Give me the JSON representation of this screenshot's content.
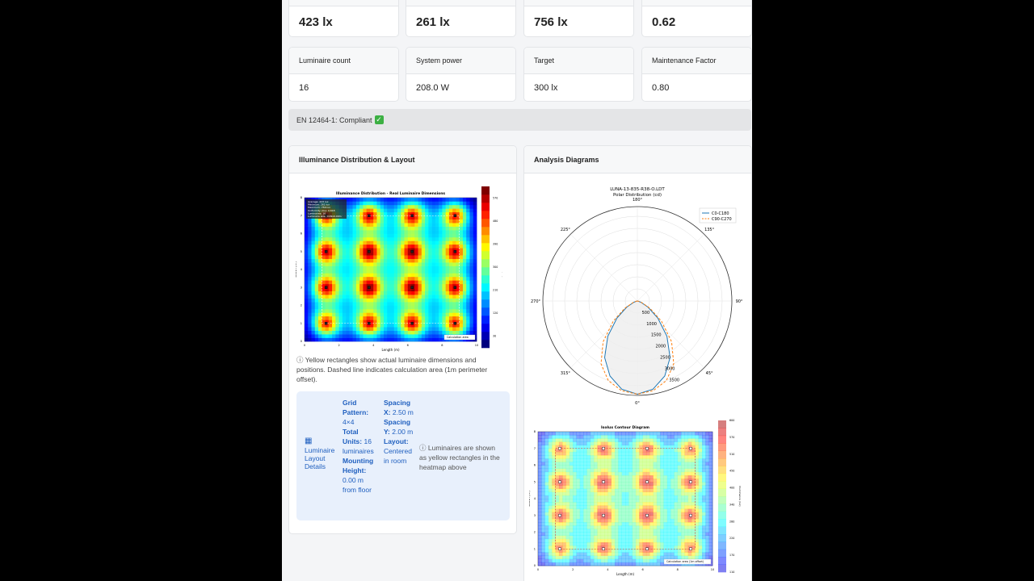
{
  "metrics_top": [
    {
      "value": "423 lx"
    },
    {
      "value": "261 lx"
    },
    {
      "value": "756 lx"
    },
    {
      "value": "0.62"
    }
  ],
  "metrics": [
    {
      "label": "Luminaire count",
      "value": "16"
    },
    {
      "label": "System power",
      "value": "208.0 W"
    },
    {
      "label": "Target",
      "value": "300 lx"
    },
    {
      "label": "Maintenance Factor",
      "value": "0.80"
    }
  ],
  "compliance": {
    "text": "EN 12464-1: Compliant",
    "icon": "check-mark-icon",
    "check": "✓"
  },
  "left_panel": {
    "title": "Illuminance Distribution & Layout",
    "caption": "ⓘ Yellow rectangles show actual luminaire dimensions and positions. Dashed line indicates calculation area (1m perimeter offset).",
    "layout": {
      "icon": "grid-icon",
      "glyph": "▦",
      "title": "Luminaire Layout Details",
      "grid_label": "Grid Pattern:",
      "grid_value": "4×4",
      "units_label": "Total Units:",
      "units_value": "16 luminaires",
      "height_label": "Mounting Height:",
      "height_value": "0.00 m from floor",
      "sx_label": "Spacing X:",
      "sx_value": "2.50 m",
      "sy_label": "Spacing Y:",
      "sy_value": "2.00 m",
      "layout_label": "Layout:",
      "layout_value": "Centered in room",
      "note": "ⓘ Luminaires are shown as yellow rectangles in the heatmap above"
    }
  },
  "right_panel": {
    "title": "Analysis Diagrams"
  },
  "chart_data": [
    {
      "type": "heatmap",
      "title": "Illuminance Distribution - Real Luminaire Dimensions",
      "xlabel": "Length (m)",
      "ylabel": "Width (m)",
      "colorbar_label": "Illuminance (lux)",
      "xlim": [
        0,
        10
      ],
      "ylim": [
        0,
        8
      ],
      "xticks": [
        0,
        2,
        4,
        6,
        8,
        10
      ],
      "yticks": [
        0,
        1,
        2,
        3,
        4,
        5,
        6,
        7,
        8
      ],
      "colorbar_ticks": [
        30,
        120,
        210,
        300,
        390,
        480,
        570
      ],
      "range": [
        30,
        756
      ],
      "colormap": "jet",
      "luminaires_x": [
        1.25,
        3.75,
        6.25,
        8.75
      ],
      "luminaires_y": [
        1,
        3,
        5,
        7
      ],
      "info_box": [
        "Average: 423 lux",
        "Minimum: 261 lux",
        "Maximum: 756 lux",
        "Uniformity (Uo): 0.618",
        "Luminaires: 16",
        "Luminaire size: 0.09x0.09m"
      ],
      "legend": "Calculation area",
      "legend_position": "lower-right"
    },
    {
      "type": "polar",
      "title": "LUNA-13-835-R38-O.LDT",
      "subtitle": "Polar Distribution (cd)",
      "angle_labels": [
        "0°",
        "45°",
        "90°",
        "135°",
        "180°",
        "225°",
        "270°",
        "315°"
      ],
      "radial_ticks": [
        500,
        1000,
        1500,
        2000,
        2500,
        3000,
        3500
      ],
      "rmax": 3900,
      "angles": [
        0,
        10,
        20,
        30,
        40,
        50,
        60,
        70,
        80,
        90
      ],
      "series": [
        {
          "name": "C0-C180",
          "color": "#1f77b4",
          "values": [
            3850,
            3700,
            3300,
            2700,
            1900,
            1100,
            500,
            150,
            30,
            0
          ]
        },
        {
          "name": "C90-C270",
          "color": "#ff7f0e",
          "values": [
            3850,
            3760,
            3500,
            3000,
            2200,
            1300,
            600,
            200,
            50,
            0
          ]
        }
      ],
      "legend_position": "top-right"
    },
    {
      "type": "heatmap",
      "title": "Isolux Contour Diagram",
      "xlabel": "Length (m)",
      "ylabel": "Width (m)",
      "colorbar_label": "Illuminance (lux)",
      "xlim": [
        0,
        10
      ],
      "ylim": [
        0,
        8
      ],
      "xticks": [
        0,
        2,
        4,
        6,
        8,
        10
      ],
      "yticks": [
        0,
        1,
        2,
        3,
        4,
        5,
        6,
        7,
        8
      ],
      "colorbar_ticks": [
        110,
        170,
        220,
        280,
        340,
        400,
        450,
        510,
        570,
        600
      ],
      "colormap": "jet",
      "legend": "Calculation area (1m offset)",
      "legend_position": "lower-right"
    }
  ]
}
